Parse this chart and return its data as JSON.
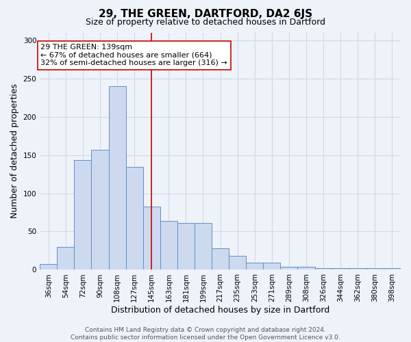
{
  "title": "29, THE GREEN, DARTFORD, DA2 6JS",
  "subtitle": "Size of property relative to detached houses in Dartford",
  "xlabel": "Distribution of detached houses by size in Dartford",
  "ylabel": "Number of detached properties",
  "bar_labels": [
    "36sqm",
    "54sqm",
    "72sqm",
    "90sqm",
    "108sqm",
    "127sqm",
    "145sqm",
    "163sqm",
    "181sqm",
    "199sqm",
    "217sqm",
    "235sqm",
    "253sqm",
    "271sqm",
    "289sqm",
    "308sqm",
    "326sqm",
    "344sqm",
    "362sqm",
    "380sqm",
    "398sqm"
  ],
  "bar_values": [
    8,
    30,
    143,
    157,
    240,
    134,
    83,
    64,
    61,
    61,
    28,
    18,
    9,
    9,
    4,
    4,
    2,
    2,
    2,
    2,
    2
  ],
  "bar_color": "#ccd9ee",
  "bar_edge_color": "#6090c8",
  "vline_x_index": 6.0,
  "vline_color": "#cc0000",
  "ylim": [
    0,
    310
  ],
  "yticks": [
    0,
    50,
    100,
    150,
    200,
    250,
    300
  ],
  "annotation_text": "29 THE GREEN: 139sqm\n← 67% of detached houses are smaller (664)\n32% of semi-detached houses are larger (316) →",
  "annotation_box_color": "#ffffff",
  "annotation_box_edge_color": "#cc0000",
  "footer_text": "Contains HM Land Registry data © Crown copyright and database right 2024.\nContains public sector information licensed under the Open Government Licence v3.0.",
  "background_color": "#eef2f9",
  "grid_color": "#d0d8e8",
  "title_fontsize": 11,
  "subtitle_fontsize": 9,
  "axis_label_fontsize": 9,
  "tick_fontsize": 7.5,
  "annotation_fontsize": 8,
  "footer_fontsize": 6.5
}
